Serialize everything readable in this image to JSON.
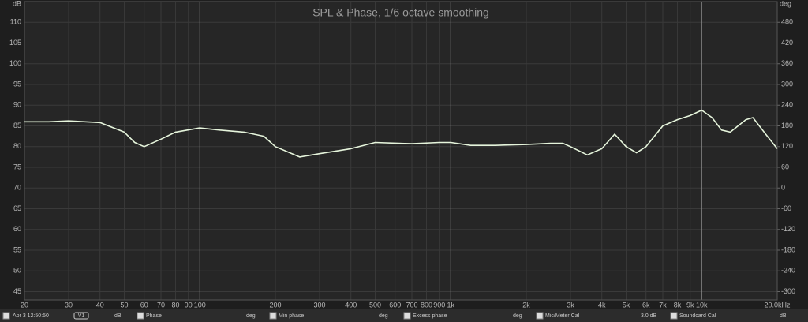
{
  "chart_data": {
    "type": "line",
    "title": "SPL & Phase, 1/6 octave smoothing",
    "y_unit": "dB",
    "y2_unit": "deg",
    "log_x": true,
    "grid": true,
    "xlim": [
      20,
      20000
    ],
    "ylim": [
      43,
      115
    ],
    "y2lim": [
      -324,
      540
    ],
    "xticks": [
      20,
      30,
      40,
      50,
      60,
      70,
      80,
      90,
      100,
      200,
      300,
      400,
      500,
      600,
      700,
      800,
      900,
      {
        "value": 1000,
        "label": "1k"
      },
      {
        "value": 2000,
        "label": "2k"
      },
      {
        "value": 3000,
        "label": "3k"
      },
      {
        "value": 4000,
        "label": "4k"
      },
      {
        "value": 5000,
        "label": "5k"
      },
      {
        "value": 6000,
        "label": "6k"
      },
      {
        "value": 7000,
        "label": "7k"
      },
      {
        "value": 8000,
        "label": "8k"
      },
      {
        "value": 9000,
        "label": "9k"
      },
      {
        "value": 10000,
        "label": "10k"
      },
      {
        "value": 20000,
        "label": "20.0kHz"
      }
    ],
    "yticks": [
      45,
      50,
      55,
      60,
      65,
      70,
      75,
      80,
      85,
      90,
      95,
      100,
      105,
      110
    ],
    "y2ticks": [
      -300,
      -240,
      -180,
      -120,
      -60,
      0,
      60,
      120,
      180,
      240,
      300,
      360,
      420,
      480
    ],
    "x": [
      20,
      25,
      30,
      40,
      50,
      55,
      60,
      70,
      80,
      100,
      120,
      150,
      180,
      200,
      250,
      300,
      400,
      500,
      700,
      900,
      1000,
      1200,
      1500,
      2000,
      2500,
      2800,
      3000,
      3500,
      4000,
      4500,
      5000,
      5500,
      6000,
      7000,
      8000,
      9000,
      10000,
      11000,
      12000,
      13000,
      15000,
      16000,
      18000,
      20000
    ],
    "series": [
      {
        "name": "Apr 3 12:50:50",
        "color": "#e6f5dc",
        "values": [
          86,
          86,
          86.2,
          85.8,
          83.5,
          81,
          80,
          81.8,
          83.5,
          84.5,
          84,
          83.5,
          82.5,
          80,
          77.5,
          78.3,
          79.5,
          81,
          80.7,
          81,
          81,
          80.3,
          80.3,
          80.5,
          80.8,
          80.8,
          80,
          78,
          79.5,
          83,
          80,
          78.5,
          80,
          85,
          86.5,
          87.5,
          88.8,
          87,
          84,
          83.5,
          86.5,
          87,
          83,
          79.5
        ]
      }
    ]
  },
  "footer": {
    "tag": "V1",
    "items": [
      {
        "name": "Phase",
        "unit": "deg"
      },
      {
        "name": "Min phase",
        "unit": "deg"
      },
      {
        "name": "Excess phase",
        "unit": "deg"
      },
      {
        "name": "Mic/Meter Cal",
        "unit": "3.0 dB"
      },
      {
        "name": "Soundcard Cal",
        "unit": "dB"
      }
    ]
  }
}
